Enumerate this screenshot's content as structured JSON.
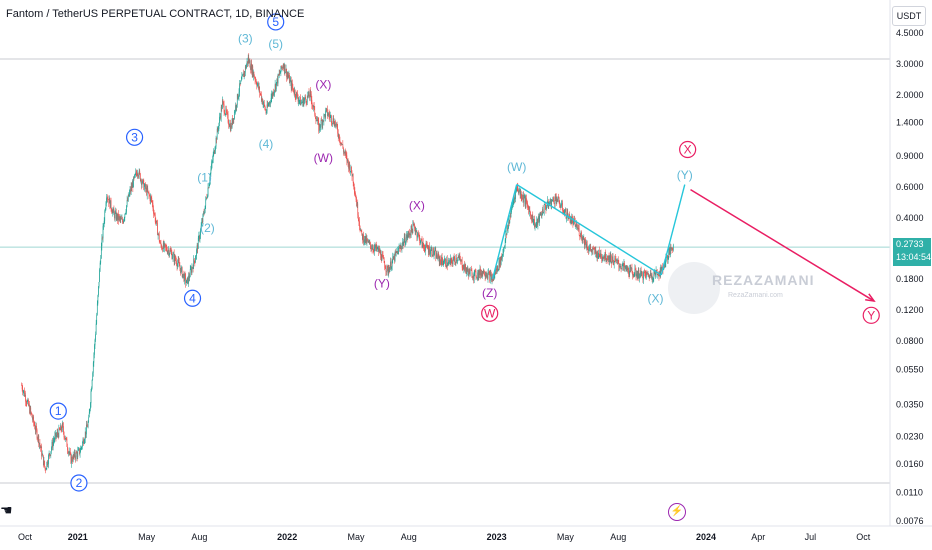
{
  "header": {
    "title": "Fantom / TetherUS PERPETUAL CONTRACT, 1D, BINANCE",
    "currency": "USDT"
  },
  "price_label": {
    "price": "0.2733",
    "countdown": "13:04:54"
  },
  "watermark": {
    "name": "REZAZAMANI",
    "sub": "RezaZamani.com"
  },
  "icons": {
    "lightning": "lightning-icon",
    "scroll": "hand-icon"
  },
  "colors": {
    "up_candle": "#26a69a",
    "down_candle": "#ef5350",
    "wave_blue": "#2962ff",
    "wave_light_blue": "#5fb8d6",
    "wave_purple": "#9c27b0",
    "wave_pink": "#e91e63",
    "projection_line": "#e91e63",
    "teal_line": "#26c6da"
  },
  "chart_data": {
    "type": "candlestick",
    "scale": "log",
    "y_ticks": [
      "4.5000",
      "3.0000",
      "2.0000",
      "1.4000",
      "0.9000",
      "0.6000",
      "0.4000",
      "0.2733",
      "0.1800",
      "0.1200",
      "0.0800",
      "0.0550",
      "0.0350",
      "0.0230",
      "0.0160",
      "0.0110",
      "0.0076"
    ],
    "x_ticks": [
      {
        "label": "Oct",
        "bold": false
      },
      {
        "label": "2021",
        "bold": true
      },
      {
        "label": "May",
        "bold": false
      },
      {
        "label": "Aug",
        "bold": false
      },
      {
        "label": "2022",
        "bold": true
      },
      {
        "label": "May",
        "bold": false
      },
      {
        "label": "Aug",
        "bold": false
      },
      {
        "label": "2023",
        "bold": true
      },
      {
        "label": "May",
        "bold": false
      },
      {
        "label": "Aug",
        "bold": false
      },
      {
        "label": "2024",
        "bold": true
      },
      {
        "label": "Apr",
        "bold": false
      },
      {
        "label": "Jul",
        "bold": false
      },
      {
        "label": "Oct",
        "bold": false
      }
    ],
    "horizontal_lines": [
      3.2,
      0.2733,
      0.0125
    ],
    "price_path": [
      [
        "2020-09-25",
        0.045
      ],
      [
        "2020-10-10",
        0.032
      ],
      [
        "2020-10-25",
        0.022
      ],
      [
        "2020-11-05",
        0.015
      ],
      [
        "2020-11-20",
        0.022
      ],
      [
        "2020-12-05",
        0.026
      ],
      [
        "2020-12-20",
        0.017
      ],
      [
        "2021-01-05",
        0.019
      ],
      [
        "2021-01-20",
        0.028
      ],
      [
        "2021-02-01",
        0.09
      ],
      [
        "2021-02-10",
        0.25
      ],
      [
        "2021-02-20",
        0.55
      ],
      [
        "2021-03-05",
        0.42
      ],
      [
        "2021-03-20",
        0.38
      ],
      [
        "2021-04-01",
        0.55
      ],
      [
        "2021-04-15",
        0.75
      ],
      [
        "2021-04-25",
        0.62
      ],
      [
        "2021-05-10",
        0.5
      ],
      [
        "2021-05-25",
        0.28
      ],
      [
        "2021-06-10",
        0.26
      ],
      [
        "2021-06-25",
        0.22
      ],
      [
        "2021-07-10",
        0.17
      ],
      [
        "2021-07-25",
        0.24
      ],
      [
        "2021-08-10",
        0.45
      ],
      [
        "2021-08-25",
        0.9
      ],
      [
        "2021-09-10",
        1.8
      ],
      [
        "2021-09-25",
        1.3
      ],
      [
        "2021-10-10",
        2.2
      ],
      [
        "2021-10-25",
        3.2
      ],
      [
        "2021-11-10",
        2.3
      ],
      [
        "2021-11-25",
        1.6
      ],
      [
        "2021-12-10",
        2.2
      ],
      [
        "2021-12-25",
        3.0
      ],
      [
        "2022-01-10",
        2.2
      ],
      [
        "2022-01-25",
        1.8
      ],
      [
        "2022-02-10",
        2.0
      ],
      [
        "2022-02-25",
        1.3
      ],
      [
        "2022-03-10",
        1.6
      ],
      [
        "2022-03-25",
        1.4
      ],
      [
        "2022-04-10",
        0.95
      ],
      [
        "2022-04-25",
        0.7
      ],
      [
        "2022-05-10",
        0.32
      ],
      [
        "2022-05-25",
        0.28
      ],
      [
        "2022-06-10",
        0.26
      ],
      [
        "2022-06-25",
        0.2
      ],
      [
        "2022-07-10",
        0.25
      ],
      [
        "2022-07-25",
        0.3
      ],
      [
        "2022-08-10",
        0.36
      ],
      [
        "2022-08-25",
        0.28
      ],
      [
        "2022-09-10",
        0.26
      ],
      [
        "2022-09-25",
        0.23
      ],
      [
        "2022-10-10",
        0.22
      ],
      [
        "2022-10-25",
        0.24
      ],
      [
        "2022-11-10",
        0.2
      ],
      [
        "2022-11-25",
        0.19
      ],
      [
        "2022-12-10",
        0.2
      ],
      [
        "2022-12-25",
        0.18
      ],
      [
        "2023-01-10",
        0.24
      ],
      [
        "2023-01-25",
        0.42
      ],
      [
        "2023-02-05",
        0.6
      ],
      [
        "2023-02-20",
        0.5
      ],
      [
        "2023-03-10",
        0.36
      ],
      [
        "2023-03-25",
        0.46
      ],
      [
        "2023-04-15",
        0.52
      ],
      [
        "2023-04-30",
        0.43
      ],
      [
        "2023-05-20",
        0.36
      ],
      [
        "2023-06-10",
        0.27
      ],
      [
        "2023-06-25",
        0.25
      ],
      [
        "2023-07-15",
        0.24
      ],
      [
        "2023-08-01",
        0.22
      ],
      [
        "2023-08-20",
        0.2
      ],
      [
        "2023-09-10",
        0.19
      ],
      [
        "2023-09-30",
        0.19
      ],
      [
        "2023-10-15",
        0.2
      ],
      [
        "2023-10-25",
        0.24
      ],
      [
        "2023-11-05",
        0.28
      ]
    ],
    "projection": {
      "teal_segments": [
        [
          [
            "2022-12-25",
            0.18
          ],
          [
            "2023-02-05",
            0.62
          ]
        ],
        [
          [
            "2023-02-05",
            0.62
          ],
          [
            "2023-10-15",
            0.19
          ]
        ],
        [
          [
            "2023-10-15",
            0.19
          ],
          [
            "2023-11-25",
            0.62
          ]
        ]
      ],
      "pink_arrow": [
        [
          "2023-12-05",
          0.58
        ],
        [
          "2024-10-20",
          0.135
        ]
      ]
    },
    "wave_labels": [
      {
        "text": "1",
        "date": "2020-11-28",
        "price": 0.032,
        "style": "circle",
        "color": "#2962ff"
      },
      {
        "text": "2",
        "date": "2021-01-03",
        "price": 0.0125,
        "style": "circle",
        "color": "#2962ff"
      },
      {
        "text": "3",
        "date": "2021-04-10",
        "price": 1.15,
        "style": "circle",
        "color": "#2962ff"
      },
      {
        "text": "4",
        "date": "2021-07-20",
        "price": 0.14,
        "style": "circle",
        "color": "#2962ff"
      },
      {
        "text": "5",
        "date": "2021-12-12",
        "price": 5.2,
        "style": "circle",
        "color": "#2962ff"
      },
      {
        "text": "(1)",
        "date": "2021-08-10",
        "price": 0.68,
        "style": "paren",
        "color": "#5fb8d6"
      },
      {
        "text": "(2)",
        "date": "2021-08-15",
        "price": 0.35,
        "style": "paren",
        "color": "#5fb8d6"
      },
      {
        "text": "(3)",
        "date": "2021-10-20",
        "price": 4.2,
        "style": "paren",
        "color": "#5fb8d6"
      },
      {
        "text": "(4)",
        "date": "2021-11-25",
        "price": 1.05,
        "style": "paren",
        "color": "#5fb8d6"
      },
      {
        "text": "(5)",
        "date": "2021-12-12",
        "price": 3.9,
        "style": "paren",
        "color": "#5fb8d6"
      },
      {
        "text": "(X)",
        "date": "2022-03-05",
        "price": 2.3,
        "style": "paren",
        "color": "#9c27b0"
      },
      {
        "text": "(W)",
        "date": "2022-03-05",
        "price": 0.88,
        "style": "paren",
        "color": "#9c27b0"
      },
      {
        "text": "(X)",
        "date": "2022-08-15",
        "price": 0.47,
        "style": "paren",
        "color": "#9c27b0"
      },
      {
        "text": "(Y)",
        "date": "2022-06-15",
        "price": 0.17,
        "style": "paren",
        "color": "#9c27b0"
      },
      {
        "text": "(Z)",
        "date": "2022-12-20",
        "price": 0.15,
        "style": "paren",
        "color": "#9c27b0"
      },
      {
        "text": "W",
        "date": "2022-12-20",
        "price": 0.115,
        "style": "circle",
        "color": "#e91e63"
      },
      {
        "text": "(W)",
        "date": "2023-02-05",
        "price": 0.78,
        "style": "paren",
        "color": "#5fb8d6"
      },
      {
        "text": "(X)",
        "date": "2023-10-05",
        "price": 0.14,
        "style": "paren",
        "color": "#5fb8d6"
      },
      {
        "text": "(Y)",
        "date": "2023-11-25",
        "price": 0.7,
        "style": "paren",
        "color": "#5fb8d6"
      },
      {
        "text": "X",
        "date": "2023-11-30",
        "price": 0.98,
        "style": "circle",
        "color": "#e91e63"
      },
      {
        "text": "Y",
        "date": "2024-10-15",
        "price": 0.112,
        "style": "circle",
        "color": "#e91e63"
      }
    ]
  }
}
